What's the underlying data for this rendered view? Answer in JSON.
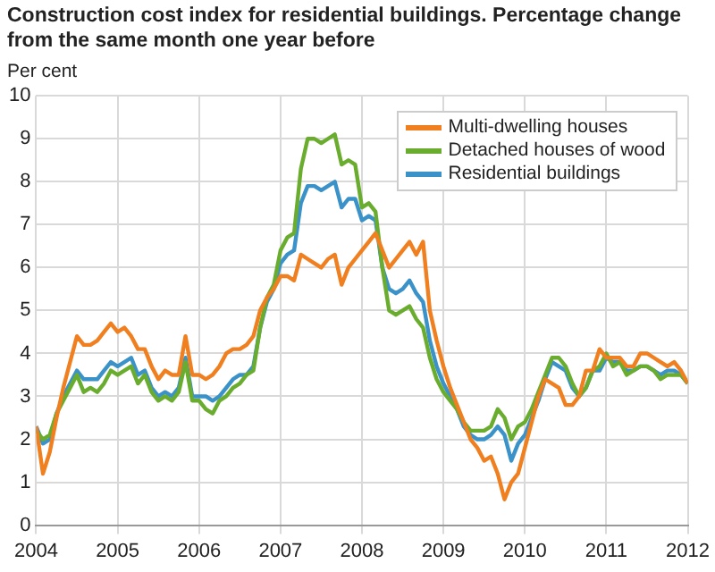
{
  "chart_data": {
    "type": "line",
    "title": "Construction cost index for residential buildings. Percentage change from the same month one year before",
    "ylabel": "Per cent",
    "x": [
      "2004-01",
      "2004-02",
      "2004-03",
      "2004-04",
      "2004-05",
      "2004-06",
      "2004-07",
      "2004-08",
      "2004-09",
      "2004-10",
      "2004-11",
      "2004-12",
      "2005-01",
      "2005-02",
      "2005-03",
      "2005-04",
      "2005-05",
      "2005-06",
      "2005-07",
      "2005-08",
      "2005-09",
      "2005-10",
      "2005-11",
      "2005-12",
      "2006-01",
      "2006-02",
      "2006-03",
      "2006-04",
      "2006-05",
      "2006-06",
      "2006-07",
      "2006-08",
      "2006-09",
      "2006-10",
      "2006-11",
      "2006-12",
      "2007-01",
      "2007-02",
      "2007-03",
      "2007-04",
      "2007-05",
      "2007-06",
      "2007-07",
      "2007-08",
      "2007-09",
      "2007-10",
      "2007-11",
      "2007-12",
      "2008-01",
      "2008-02",
      "2008-03",
      "2008-04",
      "2008-05",
      "2008-06",
      "2008-07",
      "2008-08",
      "2008-09",
      "2008-10",
      "2008-11",
      "2008-12",
      "2009-01",
      "2009-02",
      "2009-03",
      "2009-04",
      "2009-05",
      "2009-06",
      "2009-07",
      "2009-08",
      "2009-09",
      "2009-10",
      "2009-11",
      "2009-12",
      "2010-01",
      "2010-02",
      "2010-03",
      "2010-04",
      "2010-05",
      "2010-06",
      "2010-07",
      "2010-08",
      "2010-09",
      "2010-10",
      "2010-11",
      "2010-12",
      "2011-01",
      "2011-02",
      "2011-03",
      "2011-04",
      "2011-05",
      "2011-06",
      "2011-07",
      "2011-08",
      "2011-09",
      "2011-10",
      "2011-11",
      "2011-12",
      "2012-01"
    ],
    "series": [
      {
        "name": "Multi-dwelling houses",
        "color": "#f07f1f",
        "values": [
          2.3,
          1.2,
          1.7,
          2.5,
          3.2,
          3.8,
          4.4,
          4.2,
          4.2,
          4.3,
          4.5,
          4.7,
          4.5,
          4.6,
          4.4,
          4.1,
          4.1,
          3.7,
          3.4,
          3.6,
          3.5,
          3.5,
          4.4,
          3.5,
          3.5,
          3.4,
          3.5,
          3.7,
          4.0,
          4.1,
          4.1,
          4.2,
          4.4,
          5.0,
          5.3,
          5.5,
          5.8,
          5.8,
          5.7,
          6.3,
          6.2,
          6.1,
          6.0,
          6.2,
          6.3,
          5.6,
          6.0,
          6.2,
          6.4,
          6.6,
          6.8,
          6.4,
          6.0,
          6.2,
          6.4,
          6.6,
          6.3,
          6.6,
          5.0,
          4.3,
          3.7,
          3.2,
          2.8,
          2.4,
          2.0,
          1.8,
          1.5,
          1.6,
          1.2,
          0.6,
          1.0,
          1.2,
          1.8,
          2.4,
          3.0,
          3.4,
          3.3,
          3.2,
          2.8,
          2.8,
          3.0,
          3.6,
          3.6,
          4.1,
          3.9,
          3.9,
          3.9,
          3.7,
          3.7,
          4.0,
          4.0,
          3.9,
          3.8,
          3.7,
          3.8,
          3.6,
          3.3
        ]
      },
      {
        "name": "Detached houses of wood",
        "color": "#6aad2e",
        "values": [
          2.2,
          2.0,
          2.1,
          2.6,
          2.9,
          3.2,
          3.5,
          3.1,
          3.2,
          3.1,
          3.3,
          3.6,
          3.5,
          3.6,
          3.7,
          3.3,
          3.5,
          3.1,
          2.9,
          3.0,
          2.9,
          3.1,
          3.8,
          2.9,
          2.9,
          2.7,
          2.6,
          2.9,
          3.0,
          3.2,
          3.3,
          3.5,
          3.6,
          4.6,
          5.3,
          5.6,
          6.4,
          6.7,
          6.8,
          8.3,
          9.0,
          9.0,
          8.9,
          9.0,
          9.1,
          8.4,
          8.5,
          8.4,
          7.4,
          7.5,
          7.3,
          6.0,
          5.0,
          4.9,
          5.0,
          5.1,
          4.8,
          4.6,
          3.9,
          3.4,
          3.1,
          2.9,
          2.7,
          2.4,
          2.2,
          2.2,
          2.2,
          2.3,
          2.7,
          2.5,
          2.0,
          2.3,
          2.4,
          2.7,
          3.1,
          3.5,
          3.9,
          3.9,
          3.7,
          3.3,
          3.0,
          3.2,
          3.6,
          3.7,
          4.0,
          3.7,
          3.8,
          3.5,
          3.6,
          3.7,
          3.7,
          3.6,
          3.4,
          3.5,
          3.5,
          3.5,
          3.3
        ]
      },
      {
        "name": "Residential buildings",
        "color": "#3a92c9",
        "values": [
          2.3,
          1.9,
          2.0,
          2.6,
          3.0,
          3.3,
          3.6,
          3.4,
          3.4,
          3.4,
          3.6,
          3.8,
          3.7,
          3.8,
          3.9,
          3.5,
          3.6,
          3.2,
          3.0,
          3.1,
          3.0,
          3.2,
          3.9,
          3.0,
          3.0,
          3.0,
          2.9,
          3.0,
          3.2,
          3.4,
          3.5,
          3.5,
          3.7,
          4.6,
          5.2,
          5.5,
          6.1,
          6.3,
          6.4,
          7.5,
          7.9,
          7.9,
          7.8,
          7.9,
          8.0,
          7.4,
          7.6,
          7.6,
          7.1,
          7.2,
          7.1,
          6.0,
          5.5,
          5.4,
          5.5,
          5.7,
          5.4,
          5.2,
          4.3,
          3.7,
          3.3,
          3.0,
          2.7,
          2.3,
          2.1,
          2.0,
          2.0,
          2.1,
          2.3,
          2.1,
          1.5,
          1.9,
          2.1,
          2.5,
          2.9,
          3.4,
          3.8,
          3.7,
          3.6,
          3.2,
          3.0,
          3.2,
          3.6,
          3.6,
          3.9,
          3.8,
          3.8,
          3.6,
          3.6,
          3.7,
          3.7,
          3.6,
          3.5,
          3.6,
          3.6,
          3.5,
          3.3
        ]
      }
    ],
    "xlim": [
      "2004-01",
      "2012-01"
    ],
    "xticks": [
      "2004",
      "2005",
      "2006",
      "2007",
      "2008",
      "2009",
      "2010",
      "2011",
      "2012"
    ],
    "ylim": [
      0,
      10
    ],
    "yticks": [
      0,
      1,
      2,
      3,
      4,
      5,
      6,
      7,
      8,
      9,
      10
    ],
    "grid": true,
    "legend": "top right",
    "marker": "none",
    "line_style": "solid"
  }
}
